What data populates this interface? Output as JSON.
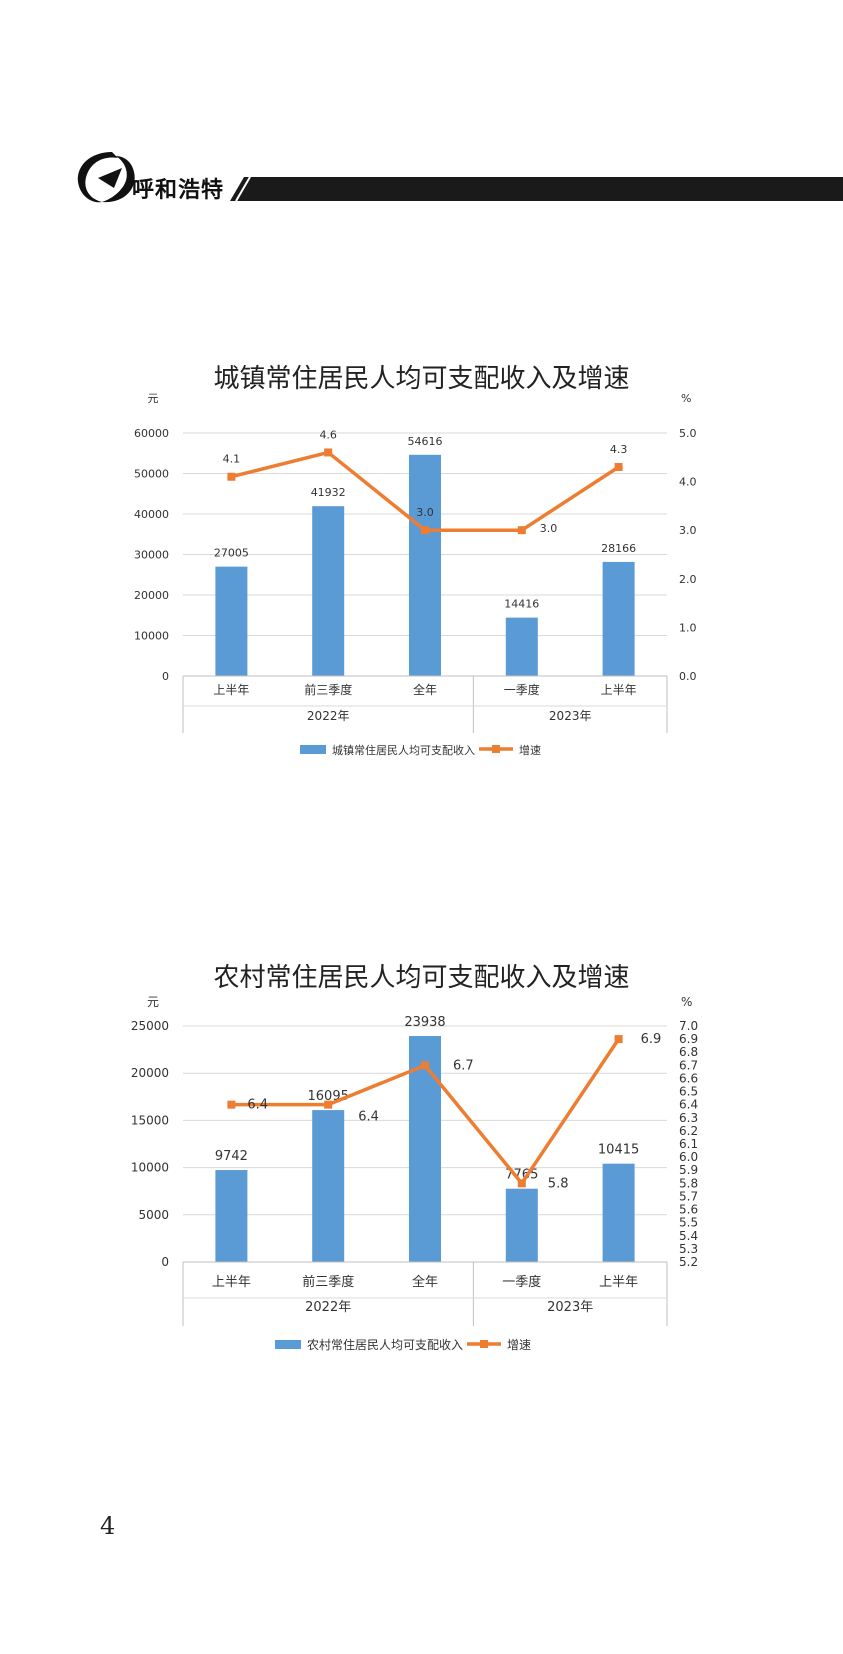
{
  "header": {
    "brand": "呼和浩特"
  },
  "page_number": "4",
  "chart_data": [
    {
      "type": "bar",
      "title": "城镇常住居民人均可支配收入及增速",
      "y_unit_left": "元",
      "y_unit_right": "%",
      "ylim": [
        0,
        60000
      ],
      "y_ticks": [
        "0",
        "10000",
        "20000",
        "30000",
        "40000",
        "50000",
        "60000"
      ],
      "y2lim": [
        0,
        5
      ],
      "y2_ticks": [
        "0.0",
        "1.0",
        "2.0",
        "3.0",
        "4.0",
        "5.0"
      ],
      "categories": [
        "上半年",
        "前三季度",
        "全年",
        "一季度",
        "上半年"
      ],
      "groups": [
        {
          "label": "2022年",
          "span": 3
        },
        {
          "label": "2023年",
          "span": 2
        }
      ],
      "series": [
        {
          "name": "城镇常住居民人均可支配收入",
          "kind": "bar",
          "color": "#5B9BD5",
          "values": [
            27005,
            41932,
            54616,
            14416,
            28166
          ],
          "labels": [
            "27005",
            "41932",
            "54616",
            "14416",
            "28166"
          ]
        },
        {
          "name": "增速",
          "kind": "line",
          "color": "#ED7D31",
          "values": [
            4.1,
            4.6,
            3.0,
            3.0,
            4.3
          ],
          "labels": [
            "4.1",
            "4.6",
            "3.0",
            "3.0",
            "4.3"
          ]
        }
      ],
      "legend": "bottom",
      "grid": true
    },
    {
      "type": "bar",
      "title": "农村常住居民人均可支配收入及增速",
      "y_unit_left": "元",
      "y_unit_right": "%",
      "ylim": [
        0,
        25000
      ],
      "y_ticks": [
        "0",
        "5000",
        "10000",
        "15000",
        "20000",
        "25000"
      ],
      "y2lim": [
        5.2,
        7.0
      ],
      "y2_ticks": [
        "5.2",
        "5.3",
        "5.4",
        "5.5",
        "5.6",
        "5.7",
        "5.8",
        "5.9",
        "6.0",
        "6.1",
        "6.2",
        "6.3",
        "6.4",
        "6.5",
        "6.6",
        "6.7",
        "6.8",
        "6.9",
        "7.0"
      ],
      "categories": [
        "上半年",
        "前三季度",
        "全年",
        "一季度",
        "上半年"
      ],
      "groups": [
        {
          "label": "2022年",
          "span": 3
        },
        {
          "label": "2023年",
          "span": 2
        }
      ],
      "series": [
        {
          "name": "农村常住居民人均可支配收入",
          "kind": "bar",
          "color": "#5B9BD5",
          "values": [
            9742,
            16095,
            23938,
            7765,
            10415
          ],
          "labels": [
            "9742",
            "16095",
            "23938",
            "7765",
            "10415"
          ]
        },
        {
          "name": "增速",
          "kind": "line",
          "color": "#ED7D31",
          "values": [
            6.4,
            6.4,
            6.7,
            5.8,
            6.9
          ],
          "labels": [
            "6.4",
            "6.4",
            "6.7",
            "5.8",
            "6.9"
          ]
        }
      ],
      "legend": "bottom",
      "grid": true
    }
  ]
}
